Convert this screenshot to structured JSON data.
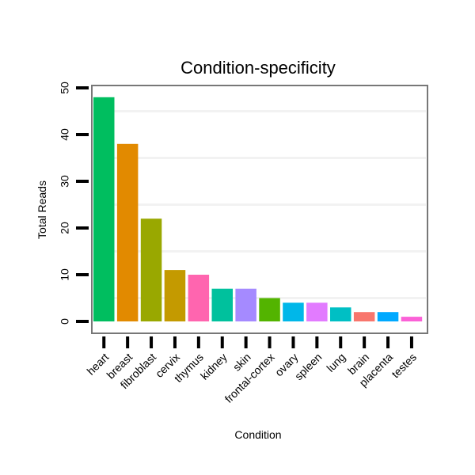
{
  "chart_data": {
    "type": "bar",
    "title": "Condition-specificity",
    "xlabel": "Condition",
    "ylabel": "Total Reads",
    "ylim": [
      0,
      50
    ],
    "yticks": [
      0,
      10,
      20,
      30,
      40,
      50
    ],
    "grid": true,
    "categories": [
      "heart",
      "breast",
      "fibroblast",
      "cervix",
      "thymus",
      "kidney",
      "skin",
      "frontal-cortex",
      "ovary",
      "spleen",
      "lung",
      "brain",
      "placenta",
      "testes"
    ],
    "values": [
      48,
      38,
      22,
      11,
      10,
      7,
      7,
      5,
      4,
      4,
      3,
      2,
      2,
      1
    ],
    "colors": [
      "#00BE5F",
      "#E28A00",
      "#99A800",
      "#C49A00",
      "#FF65AF",
      "#00C19D",
      "#A58AFF",
      "#53B400",
      "#00B7E9",
      "#E27BFF",
      "#00BFC4",
      "#F8766D",
      "#00A9FF",
      "#FB61D7"
    ]
  }
}
